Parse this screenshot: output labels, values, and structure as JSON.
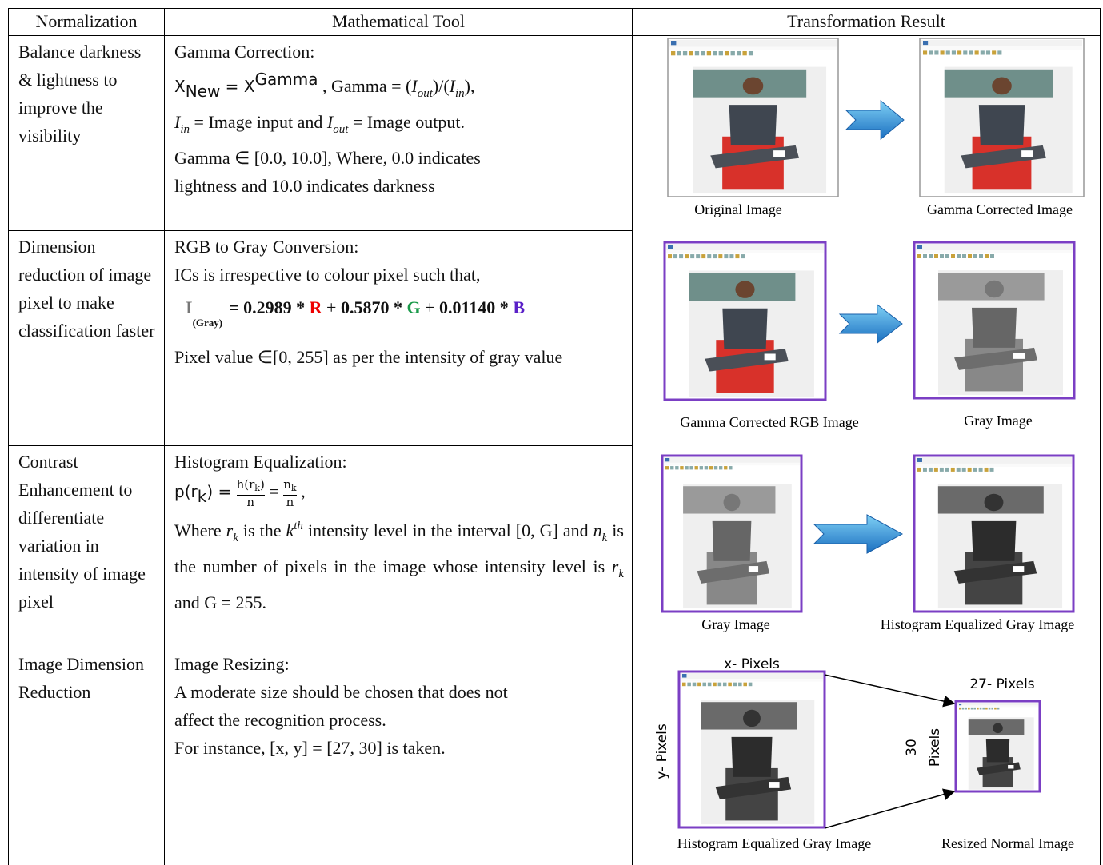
{
  "header": [
    "Normalization",
    "Mathematical Tool",
    "Transformation Result"
  ],
  "rows": [
    {
      "normalization": "Balance darkness & lightness  to improve the visibility",
      "tool": [
        [
          "Gamma Correction:"
        ],
        [
          "X",
          "New",
          " =  ",
          "X",
          "Gamma",
          " , Gamma = (",
          "I",
          "out",
          ")/(",
          "I",
          "in",
          "),"
        ],
        [
          "I",
          "in",
          " = Image input and ",
          "I",
          "out",
          " = Image output."
        ],
        [
          "Gamma ∈ [0.0, 10.0], Where, 0.0 indicates"
        ],
        [
          "lightness and 10.0 indicates darkness"
        ]
      ],
      "captions": [
        "Original Image",
        "Gamma Corrected Image"
      ]
    },
    {
      "normalization": "Dimension reduction of image pixel to make classification faster",
      "tool": [
        [
          "RGB to Gray Conversion:"
        ],
        [
          "ICs is irrespective to colour  pixel such that,"
        ],
        [
          "I",
          "(Gray)",
          "=  0.2989 * ",
          "R",
          " + ",
          "0.5870 * ",
          "G",
          " + ",
          "0.01140 * ",
          "B"
        ],
        [
          "Pixel value ∈[0, 255] as per the intensity of gray value"
        ]
      ],
      "captions": [
        "Gamma Corrected RGB Image",
        "Gray Image"
      ]
    },
    {
      "normalization": "Contrast Enhancement to differentiate variation in intensity of image pixel",
      "tool": [
        [
          "Histogram Equalization:"
        ],
        [
          "p(r",
          "k",
          ") = ",
          "h(r",
          "k",
          ")",
          "n",
          " = ",
          "n",
          "k",
          "n",
          " ,"
        ],
        [
          "Where ",
          "r",
          "k",
          " is the ",
          "k",
          "th",
          " intensity level in the interval [0, G] and ",
          "n",
          "k",
          " is the number of pixels in the image whose intensity level is ",
          "r",
          "k",
          " and G = 255."
        ]
      ],
      "captions": [
        "Gray Image",
        "Histogram Equalized Gray Image"
      ]
    },
    {
      "normalization": "Image Dimension Reduction",
      "tool": [
        [
          "Image Resizing:"
        ],
        [
          "A moderate size should be chosen that does not"
        ],
        [
          "affect the recognition process."
        ],
        [
          "For instance, [x, y] = [27, 30] is taken."
        ]
      ],
      "captions": [
        "Histogram Equalized Gray Image",
        "Resized Normal Image"
      ],
      "labels": [
        "x- Pixels",
        "y- Pixels",
        "27- Pixels",
        "30",
        "Pixels"
      ]
    }
  ]
}
